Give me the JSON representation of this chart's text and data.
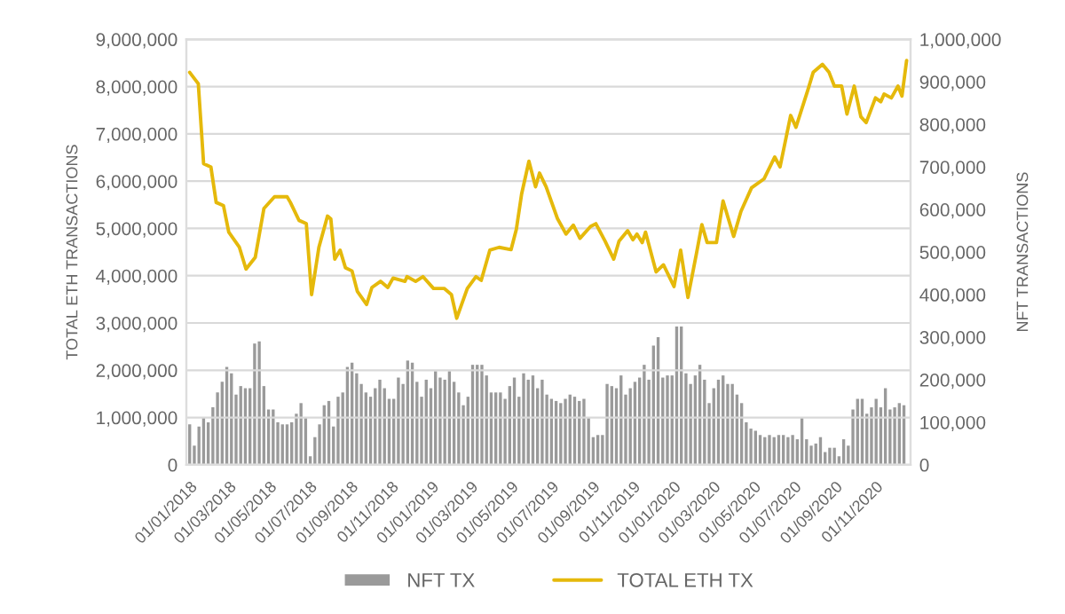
{
  "chart_data": {
    "type": "bar",
    "ylabel": "TOTAL ETH TRANSACTIONS",
    "y2label": "NFT TRANSACTIONS",
    "ylim": [
      0,
      9000000
    ],
    "yticks": [
      {
        "value": 0,
        "label": "0"
      },
      {
        "value": 1000000,
        "label": "1,000,000"
      },
      {
        "value": 2000000,
        "label": "2,000,000"
      },
      {
        "value": 3000000,
        "label": "3,000,000"
      },
      {
        "value": 4000000,
        "label": "4,000,000"
      },
      {
        "value": 5000000,
        "label": "5,000,000"
      },
      {
        "value": 6000000,
        "label": "6,000,000"
      },
      {
        "value": 7000000,
        "label": "7,000,000"
      },
      {
        "value": 8000000,
        "label": "8,000,000"
      },
      {
        "value": 9000000,
        "label": "9,000,000"
      }
    ],
    "y2lim": [
      0,
      1000000
    ],
    "y2ticks": [
      {
        "value": 0,
        "label": "0"
      },
      {
        "value": 100000,
        "label": "100,000"
      },
      {
        "value": 200000,
        "label": "200,000"
      },
      {
        "value": 300000,
        "label": "300,000"
      },
      {
        "value": 400000,
        "label": "400,000"
      },
      {
        "value": 500000,
        "label": "500,000"
      },
      {
        "value": 600000,
        "label": "600,000"
      },
      {
        "value": 700000,
        "label": "700,000"
      },
      {
        "value": 800000,
        "label": "800,000"
      },
      {
        "value": 900000,
        "label": "900,000"
      },
      {
        "value": 1000000,
        "label": "1,000,000"
      }
    ],
    "xlim": [
      "2017-12-27",
      "2020-12-24"
    ],
    "xticks": [
      {
        "value": "2018-01-01",
        "label": "01/01/2018"
      },
      {
        "value": "2018-03-01",
        "label": "01/03/2018"
      },
      {
        "value": "2018-05-01",
        "label": "01/05/2018"
      },
      {
        "value": "2018-07-01",
        "label": "01/07/2018"
      },
      {
        "value": "2018-09-01",
        "label": "01/09/2018"
      },
      {
        "value": "2018-11-01",
        "label": "01/11/2018"
      },
      {
        "value": "2019-01-01",
        "label": "01/01/2019"
      },
      {
        "value": "2019-03-01",
        "label": "01/03/2019"
      },
      {
        "value": "2019-05-01",
        "label": "01/05/2019"
      },
      {
        "value": "2019-07-01",
        "label": "01/07/2019"
      },
      {
        "value": "2019-09-01",
        "label": "01/09/2019"
      },
      {
        "value": "2019-11-01",
        "label": "01/11/2019"
      },
      {
        "value": "2020-01-01",
        "label": "01/01/2020"
      },
      {
        "value": "2020-03-01",
        "label": "01/03/2020"
      },
      {
        "value": "2020-05-01",
        "label": "01/05/2020"
      },
      {
        "value": "2020-07-01",
        "label": "01/07/2020"
      },
      {
        "value": "2020-09-01",
        "label": "01/09/2020"
      },
      {
        "value": "2020-11-01",
        "label": "01/11/2020"
      }
    ],
    "grid": "y",
    "legend": "bottom",
    "series": [
      {
        "name": "NFT TX",
        "axis": "y2",
        "color": "#9a9a9a",
        "x": [
          "2018-01-01",
          "2018-01-08",
          "2018-01-15",
          "2018-01-22",
          "2018-01-29",
          "2018-02-05",
          "2018-02-12",
          "2018-02-19",
          "2018-02-26",
          "2018-03-05",
          "2018-03-12",
          "2018-03-19",
          "2018-03-26",
          "2018-04-02",
          "2018-04-09",
          "2018-04-16",
          "2018-04-23",
          "2018-04-30",
          "2018-05-07",
          "2018-05-14",
          "2018-05-21",
          "2018-05-28",
          "2018-06-04",
          "2018-06-11",
          "2018-06-18",
          "2018-06-25",
          "2018-07-02",
          "2018-07-09",
          "2018-07-16",
          "2018-07-23",
          "2018-07-30",
          "2018-08-06",
          "2018-08-13",
          "2018-08-20",
          "2018-08-27",
          "2018-09-03",
          "2018-09-10",
          "2018-09-17",
          "2018-09-24",
          "2018-10-01",
          "2018-10-08",
          "2018-10-15",
          "2018-10-22",
          "2018-10-29",
          "2018-11-05",
          "2018-11-12",
          "2018-11-19",
          "2018-11-26",
          "2018-12-03",
          "2018-12-10",
          "2018-12-17",
          "2018-12-24",
          "2018-12-31",
          "2019-01-07",
          "2019-01-14",
          "2019-01-21",
          "2019-01-28",
          "2019-02-04",
          "2019-02-11",
          "2019-02-18",
          "2019-02-25",
          "2019-03-04",
          "2019-03-11",
          "2019-03-18",
          "2019-03-25",
          "2019-04-01",
          "2019-04-08",
          "2019-04-15",
          "2019-04-22",
          "2019-04-29",
          "2019-05-06",
          "2019-05-13",
          "2019-05-20",
          "2019-05-27",
          "2019-06-03",
          "2019-06-10",
          "2019-06-17",
          "2019-06-24",
          "2019-07-01",
          "2019-07-08",
          "2019-07-15",
          "2019-07-22",
          "2019-07-29",
          "2019-08-05",
          "2019-08-12",
          "2019-08-19",
          "2019-08-26",
          "2019-09-02",
          "2019-09-09",
          "2019-09-16",
          "2019-09-23",
          "2019-09-30",
          "2019-10-07",
          "2019-10-14",
          "2019-10-21",
          "2019-10-28",
          "2019-11-04",
          "2019-11-11",
          "2019-11-18",
          "2019-11-25",
          "2019-12-02",
          "2019-12-09",
          "2019-12-16",
          "2019-12-23",
          "2019-12-30",
          "2020-01-06",
          "2020-01-13",
          "2020-01-20",
          "2020-01-27",
          "2020-02-03",
          "2020-02-10",
          "2020-02-17",
          "2020-02-24",
          "2020-03-02",
          "2020-03-09",
          "2020-03-16",
          "2020-03-23",
          "2020-03-30",
          "2020-04-06",
          "2020-04-13",
          "2020-04-20",
          "2020-04-27",
          "2020-05-04",
          "2020-05-11",
          "2020-05-18",
          "2020-05-25",
          "2020-06-01",
          "2020-06-08",
          "2020-06-15",
          "2020-06-22",
          "2020-06-29",
          "2020-07-06",
          "2020-07-13",
          "2020-07-20",
          "2020-07-27",
          "2020-08-03",
          "2020-08-10",
          "2020-08-17",
          "2020-08-24",
          "2020-08-31",
          "2020-09-07",
          "2020-09-14",
          "2020-09-21",
          "2020-09-28",
          "2020-10-05",
          "2020-10-12",
          "2020-10-19",
          "2020-10-26",
          "2020-11-02",
          "2020-11-09",
          "2020-11-16",
          "2020-11-23",
          "2020-11-30",
          "2020-12-07",
          "2020-12-14"
        ],
        "values": [
          95000,
          45000,
          90000,
          110000,
          100000,
          135000,
          170000,
          195000,
          230000,
          215000,
          165000,
          185000,
          180000,
          180000,
          285000,
          290000,
          185000,
          130000,
          130000,
          100000,
          95000,
          95000,
          100000,
          120000,
          145000,
          110000,
          20000,
          65000,
          95000,
          140000,
          150000,
          90000,
          160000,
          170000,
          230000,
          240000,
          215000,
          190000,
          170000,
          160000,
          180000,
          200000,
          180000,
          155000,
          155000,
          205000,
          190000,
          245000,
          240000,
          195000,
          160000,
          200000,
          180000,
          220000,
          205000,
          200000,
          220000,
          195000,
          170000,
          140000,
          160000,
          235000,
          235000,
          235000,
          210000,
          170000,
          170000,
          170000,
          155000,
          185000,
          205000,
          160000,
          215000,
          200000,
          210000,
          180000,
          200000,
          165000,
          155000,
          150000,
          145000,
          155000,
          165000,
          160000,
          150000,
          155000,
          110000,
          65000,
          70000,
          70000,
          190000,
          185000,
          180000,
          210000,
          165000,
          180000,
          195000,
          205000,
          235000,
          200000,
          280000,
          300000,
          205000,
          210000,
          210000,
          325000,
          325000,
          215000,
          190000,
          210000,
          235000,
          200000,
          145000,
          180000,
          200000,
          210000,
          190000,
          190000,
          165000,
          145000,
          100000,
          85000,
          80000,
          70000,
          65000,
          70000,
          65000,
          70000,
          70000,
          65000,
          70000,
          60000,
          110000,
          60000,
          45000,
          50000,
          65000,
          30000,
          40000,
          40000,
          20000,
          60000,
          45000,
          130000,
          155000,
          155000,
          120000,
          135000,
          155000,
          135000,
          180000,
          130000,
          135000,
          145000,
          140000
        ]
      },
      {
        "name": "TOTAL ETH TX",
        "type": "line",
        "color": "#e5b90b",
        "x": [
          "2018-01-01",
          "2018-01-14",
          "2018-01-22",
          "2018-02-02",
          "2018-02-10",
          "2018-02-21",
          "2018-03-01",
          "2018-03-17",
          "2018-03-27",
          "2018-04-10",
          "2018-04-23",
          "2018-05-09",
          "2018-05-28",
          "2018-06-02",
          "2018-06-15",
          "2018-06-26",
          "2018-07-04",
          "2018-07-15",
          "2018-07-28",
          "2018-08-02",
          "2018-08-08",
          "2018-08-16",
          "2018-08-24",
          "2018-09-03",
          "2018-09-11",
          "2018-09-25",
          "2018-10-03",
          "2018-10-16",
          "2018-10-27",
          "2018-11-04",
          "2018-11-22",
          "2018-11-25",
          "2018-12-08",
          "2018-12-19",
          "2019-01-04",
          "2019-01-20",
          "2019-01-31",
          "2019-02-08",
          "2019-02-24",
          "2019-03-09",
          "2019-03-17",
          "2019-03-30",
          "2019-04-13",
          "2019-05-01",
          "2019-05-09",
          "2019-05-17",
          "2019-05-28",
          "2019-06-07",
          "2019-06-13",
          "2019-06-23",
          "2019-07-10",
          "2019-07-23",
          "2019-08-03",
          "2019-08-13",
          "2019-08-29",
          "2019-09-06",
          "2019-09-20",
          "2019-10-03",
          "2019-10-11",
          "2019-10-24",
          "2019-11-01",
          "2019-11-07",
          "2019-11-15",
          "2019-11-20",
          "2019-12-06",
          "2019-12-17",
          "2020-01-02",
          "2020-01-12",
          "2020-01-23",
          "2020-02-05",
          "2020-02-13",
          "2020-02-21",
          "2020-03-06",
          "2020-03-16",
          "2020-04-01",
          "2020-04-12",
          "2020-04-28",
          "2020-05-17",
          "2020-06-02",
          "2020-06-10",
          "2020-06-26",
          "2020-07-04",
          "2020-07-22",
          "2020-07-30",
          "2020-08-13",
          "2020-08-23",
          "2020-08-31",
          "2020-09-11",
          "2020-09-19",
          "2020-09-30",
          "2020-10-10",
          "2020-10-18",
          "2020-11-01",
          "2020-11-09",
          "2020-11-14",
          "2020-11-25",
          "2020-12-05",
          "2020-12-11",
          "2020-12-18"
        ],
        "values": [
          8300000,
          8060000,
          6370000,
          6300000,
          5550000,
          5480000,
          4920000,
          4600000,
          4140000,
          4390000,
          5420000,
          5670000,
          5670000,
          5550000,
          5170000,
          5100000,
          3600000,
          4600000,
          5260000,
          5200000,
          4350000,
          4540000,
          4170000,
          4100000,
          3670000,
          3390000,
          3750000,
          3880000,
          3750000,
          3950000,
          3880000,
          3980000,
          3880000,
          3980000,
          3730000,
          3730000,
          3600000,
          3100000,
          3730000,
          3980000,
          3900000,
          4540000,
          4600000,
          4550000,
          4980000,
          5730000,
          6420000,
          5880000,
          6170000,
          5880000,
          5210000,
          4880000,
          5070000,
          4790000,
          5040000,
          5100000,
          4730000,
          4350000,
          4730000,
          4950000,
          4760000,
          4880000,
          4700000,
          4920000,
          4080000,
          4230000,
          3770000,
          4540000,
          3540000,
          4480000,
          5080000,
          4700000,
          4700000,
          5580000,
          4830000,
          5360000,
          5860000,
          6050000,
          6510000,
          6300000,
          7390000,
          7140000,
          7930000,
          8300000,
          8470000,
          8300000,
          8010000,
          8010000,
          7420000,
          8010000,
          7360000,
          7240000,
          7760000,
          7680000,
          7840000,
          7760000,
          8010000,
          7800000,
          8550000
        ]
      }
    ]
  }
}
